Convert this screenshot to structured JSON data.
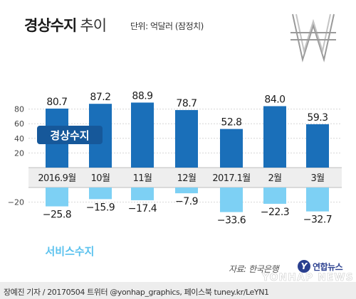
{
  "title_main": "경상수지",
  "title_sub": "추이",
  "unit": "단위: 억달러 (잠정치)",
  "source": "자료: 한국은행",
  "credit": "장예진 기자 / 20170504 트위터 @yonhap_graphics, 페이스북 tuney.kr/LeYN1",
  "logo_text": "연합뉴스",
  "watermark": "YONHAP NEWS",
  "chart_data": {
    "type": "bar",
    "categories": [
      "2016.9월",
      "10월",
      "11월",
      "12월",
      "2017.1월",
      "2월",
      "3월"
    ],
    "series": [
      {
        "name": "경상수지",
        "values": [
          80.7,
          87.2,
          88.9,
          78.7,
          52.8,
          84.0,
          59.3
        ],
        "labels": [
          "80.7",
          "87.2",
          "88.9",
          "78.7",
          "52.8",
          "84.0",
          "59.3"
        ],
        "color": "#1a6fb9"
      },
      {
        "name": "서비스수지",
        "values": [
          -25.8,
          -15.9,
          -17.4,
          -7.9,
          -33.6,
          -22.3,
          -32.7
        ],
        "labels": [
          "−25.8",
          "−15.9",
          "−17.4",
          "−7.9",
          "−33.6",
          "−22.3",
          "−32.7"
        ],
        "color": "#7dd0f4"
      }
    ],
    "yticks": [
      80,
      60,
      40,
      20,
      0,
      -20
    ],
    "ytick_labels": [
      "80",
      "60",
      "40",
      "20",
      "",
      "−20"
    ],
    "ylim": [
      -40,
      100
    ],
    "grid": true
  },
  "colors": {
    "primary": "#1a6fb9",
    "secondary": "#7dd0f4",
    "grid": "#d6d6d6",
    "axis_band": "#eeeeee"
  }
}
